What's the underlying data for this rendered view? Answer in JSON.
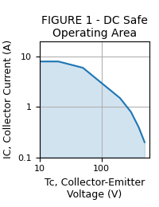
{
  "chart_data": {
    "type": "area",
    "title": "FIGURE 1 - DC Safe Operating Area",
    "xlabel": "Tc, Collector-Emitter Voltage (V)",
    "ylabel": "IC, Collector Current (A)",
    "x": [
      10,
      20,
      50,
      100,
      200,
      300,
      400,
      500
    ],
    "values": [
      8,
      8,
      6,
      3,
      1.5,
      0.8,
      0.4,
      0.2
    ],
    "log": true,
    "xlim": [
      10,
      600
    ],
    "ylim": [
      0.1,
      20
    ],
    "xticks": [
      10,
      100
    ],
    "yticks": [
      0.1,
      1,
      10
    ],
    "grid": true
  }
}
